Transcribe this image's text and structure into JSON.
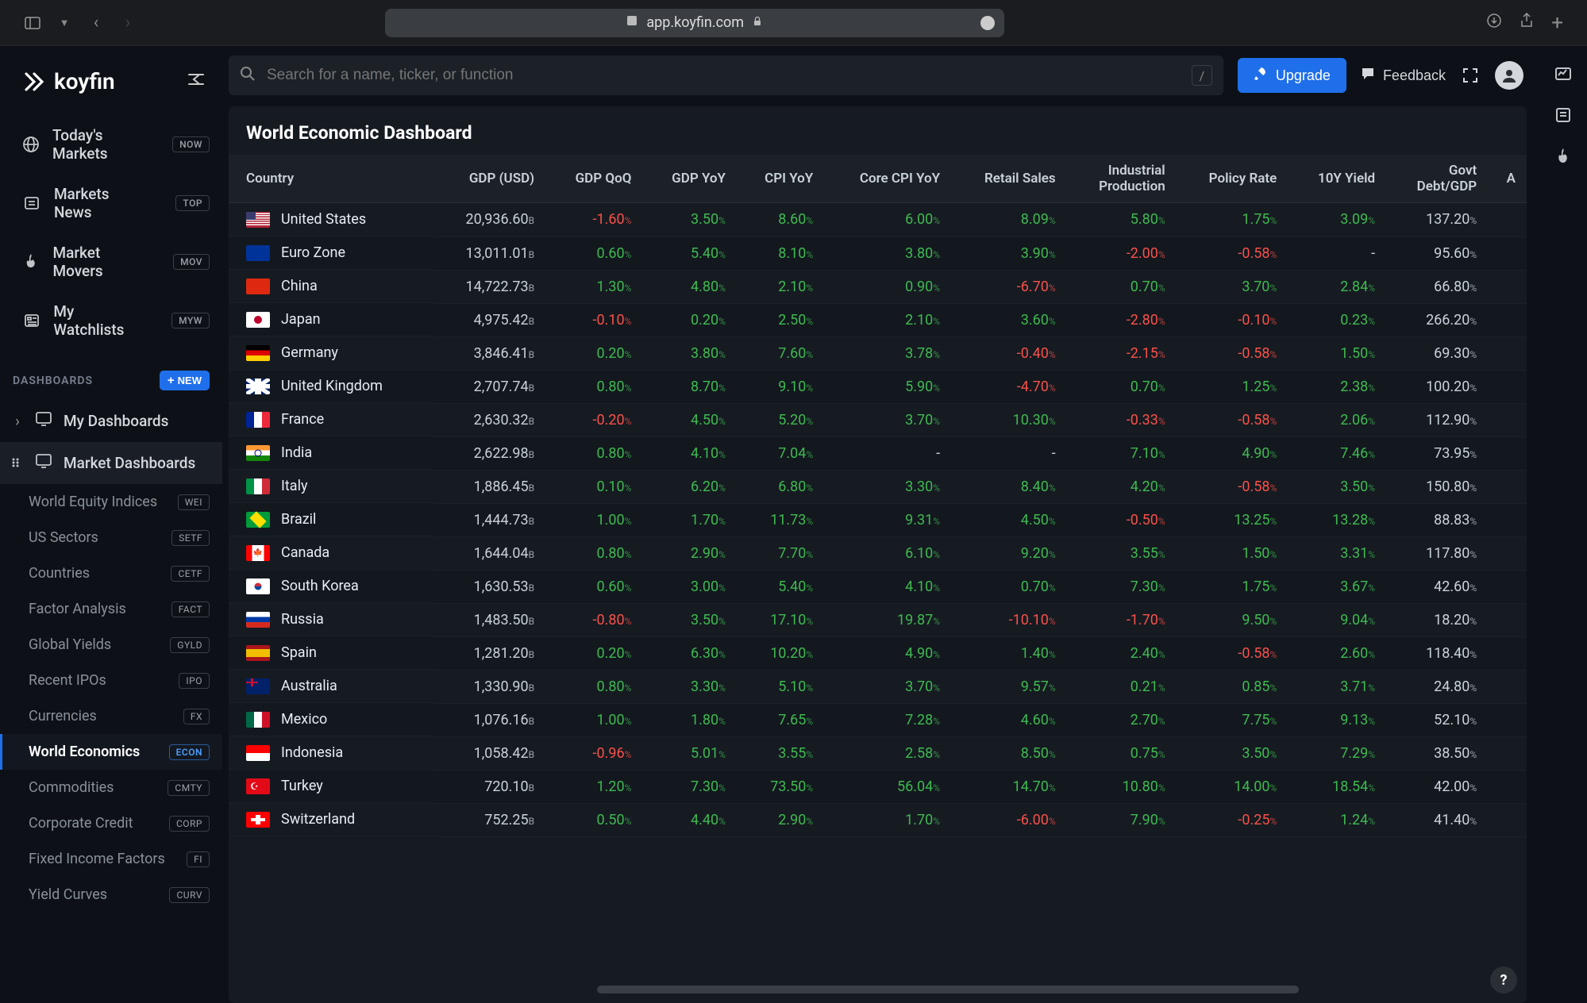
{
  "browser": {
    "url": "app.koyfin.com"
  },
  "logo": "koyfin",
  "topnav": [
    {
      "icon": "globe",
      "label": "Today's Markets",
      "badge": "NOW"
    },
    {
      "icon": "news",
      "label": "Markets News",
      "badge": "TOP"
    },
    {
      "icon": "flame",
      "label": "Market Movers",
      "badge": "MOV"
    },
    {
      "icon": "watchlist",
      "label": "My Watchlists",
      "badge": "MYW"
    }
  ],
  "section_label": "DASHBOARDS",
  "btn_new": "NEW",
  "dash_groups": [
    {
      "label": "My Dashboards",
      "expanded": false
    },
    {
      "label": "Market Dashboards",
      "expanded": true
    }
  ],
  "dash_subs": [
    {
      "label": "World Equity Indices",
      "badge": "WEI"
    },
    {
      "label": "US Sectors",
      "badge": "SETF"
    },
    {
      "label": "Countries",
      "badge": "CETF"
    },
    {
      "label": "Factor Analysis",
      "badge": "FACT"
    },
    {
      "label": "Global Yields",
      "badge": "GYLD"
    },
    {
      "label": "Recent IPOs",
      "badge": "IPO"
    },
    {
      "label": "Currencies",
      "badge": "FX"
    },
    {
      "label": "World Economics",
      "badge": "ECON",
      "active": true
    },
    {
      "label": "Commodities",
      "badge": "CMTY"
    },
    {
      "label": "Corporate Credit",
      "badge": "CORP"
    },
    {
      "label": "Fixed Income Factors",
      "badge": "FI"
    },
    {
      "label": "Yield Curves",
      "badge": "CURV"
    }
  ],
  "search_placeholder": "Search for a name, ticker, or function",
  "btn_upgrade": "Upgrade",
  "btn_feedback": "Feedback",
  "panel_title": "World Economic Dashboard",
  "table": {
    "columns": [
      "Country",
      "GDP (USD)",
      "GDP QoQ",
      "GDP YoY",
      "CPI YoY",
      "Core CPI YoY",
      "Retail Sales",
      "Industrial Production",
      "Policy Rate",
      "10Y Yield",
      "Govt Debt/GDP",
      "A"
    ],
    "rows": [
      {
        "flag": "us",
        "country": "United States",
        "gdp": "20,936.60",
        "qoq": "-1.60",
        "yoy": "3.50",
        "cpi": "8.60",
        "core": "6.00",
        "retail": "8.09",
        "ind": "5.80",
        "policy": "1.75",
        "y10": "3.09",
        "debt": "137.20"
      },
      {
        "flag": "eu",
        "country": "Euro Zone",
        "gdp": "13,011.01",
        "qoq": "0.60",
        "yoy": "5.40",
        "cpi": "8.10",
        "core": "3.80",
        "retail": "3.90",
        "ind": "-2.00",
        "policy": "-0.58",
        "y10": "-",
        "debt": "95.60"
      },
      {
        "flag": "cn",
        "country": "China",
        "gdp": "14,722.73",
        "qoq": "1.30",
        "yoy": "4.80",
        "cpi": "2.10",
        "core": "0.90",
        "retail": "-6.70",
        "ind": "0.70",
        "policy": "3.70",
        "y10": "2.84",
        "debt": "66.80"
      },
      {
        "flag": "jp",
        "country": "Japan",
        "gdp": "4,975.42",
        "qoq": "-0.10",
        "yoy": "0.20",
        "cpi": "2.50",
        "core": "2.10",
        "retail": "3.60",
        "ind": "-2.80",
        "policy": "-0.10",
        "y10": "0.23",
        "debt": "266.20"
      },
      {
        "flag": "de",
        "country": "Germany",
        "gdp": "3,846.41",
        "qoq": "0.20",
        "yoy": "3.80",
        "cpi": "7.60",
        "core": "3.78",
        "retail": "-0.40",
        "ind": "-2.15",
        "policy": "-0.58",
        "y10": "1.50",
        "debt": "69.30"
      },
      {
        "flag": "gb",
        "country": "United Kingdom",
        "gdp": "2,707.74",
        "qoq": "0.80",
        "yoy": "8.70",
        "cpi": "9.10",
        "core": "5.90",
        "retail": "-4.70",
        "ind": "0.70",
        "policy": "1.25",
        "y10": "2.38",
        "debt": "100.20"
      },
      {
        "flag": "fr",
        "country": "France",
        "gdp": "2,630.32",
        "qoq": "-0.20",
        "yoy": "4.50",
        "cpi": "5.20",
        "core": "3.70",
        "retail": "10.30",
        "ind": "-0.33",
        "policy": "-0.58",
        "y10": "2.06",
        "debt": "112.90"
      },
      {
        "flag": "in",
        "country": "India",
        "gdp": "2,622.98",
        "qoq": "0.80",
        "yoy": "4.10",
        "cpi": "7.04",
        "core": "-",
        "retail": "-",
        "ind": "7.10",
        "policy": "4.90",
        "y10": "7.46",
        "debt": "73.95"
      },
      {
        "flag": "it",
        "country": "Italy",
        "gdp": "1,886.45",
        "qoq": "0.10",
        "yoy": "6.20",
        "cpi": "6.80",
        "core": "3.30",
        "retail": "8.40",
        "ind": "4.20",
        "policy": "-0.58",
        "y10": "3.50",
        "debt": "150.80"
      },
      {
        "flag": "br",
        "country": "Brazil",
        "gdp": "1,444.73",
        "qoq": "1.00",
        "yoy": "1.70",
        "cpi": "11.73",
        "core": "9.31",
        "retail": "4.50",
        "ind": "-0.50",
        "policy": "13.25",
        "y10": "13.28",
        "debt": "88.83"
      },
      {
        "flag": "ca",
        "country": "Canada",
        "gdp": "1,644.04",
        "qoq": "0.80",
        "yoy": "2.90",
        "cpi": "7.70",
        "core": "6.10",
        "retail": "9.20",
        "ind": "3.55",
        "policy": "1.50",
        "y10": "3.31",
        "debt": "117.80"
      },
      {
        "flag": "kr",
        "country": "South Korea",
        "gdp": "1,630.53",
        "qoq": "0.60",
        "yoy": "3.00",
        "cpi": "5.40",
        "core": "4.10",
        "retail": "0.70",
        "ind": "7.30",
        "policy": "1.75",
        "y10": "3.67",
        "debt": "42.60"
      },
      {
        "flag": "ru",
        "country": "Russia",
        "gdp": "1,483.50",
        "qoq": "-0.80",
        "yoy": "3.50",
        "cpi": "17.10",
        "core": "19.87",
        "retail": "-10.10",
        "ind": "-1.70",
        "policy": "9.50",
        "y10": "9.04",
        "debt": "18.20"
      },
      {
        "flag": "es",
        "country": "Spain",
        "gdp": "1,281.20",
        "qoq": "0.20",
        "yoy": "6.30",
        "cpi": "10.20",
        "core": "4.90",
        "retail": "1.40",
        "ind": "2.40",
        "policy": "-0.58",
        "y10": "2.60",
        "debt": "118.40"
      },
      {
        "flag": "au",
        "country": "Australia",
        "gdp": "1,330.90",
        "qoq": "0.80",
        "yoy": "3.30",
        "cpi": "5.10",
        "core": "3.70",
        "retail": "9.57",
        "ind": "0.21",
        "policy": "0.85",
        "y10": "3.71",
        "debt": "24.80"
      },
      {
        "flag": "mx",
        "country": "Mexico",
        "gdp": "1,076.16",
        "qoq": "1.00",
        "yoy": "1.80",
        "cpi": "7.65",
        "core": "7.28",
        "retail": "4.60",
        "ind": "2.70",
        "policy": "7.75",
        "y10": "9.13",
        "debt": "52.10"
      },
      {
        "flag": "id",
        "country": "Indonesia",
        "gdp": "1,058.42",
        "qoq": "-0.96",
        "yoy": "5.01",
        "cpi": "3.55",
        "core": "2.58",
        "retail": "8.50",
        "ind": "0.75",
        "policy": "3.50",
        "y10": "7.29",
        "debt": "38.50"
      },
      {
        "flag": "tr",
        "country": "Turkey",
        "gdp": "720.10",
        "qoq": "1.20",
        "yoy": "7.30",
        "cpi": "73.50",
        "core": "56.04",
        "retail": "14.70",
        "ind": "10.80",
        "policy": "14.00",
        "y10": "18.54",
        "debt": "42.00"
      },
      {
        "flag": "ch",
        "country": "Switzerland",
        "gdp": "752.25",
        "qoq": "0.50",
        "yoy": "4.40",
        "cpi": "2.90",
        "core": "1.70",
        "retail": "-6.00",
        "ind": "7.90",
        "policy": "-0.25",
        "y10": "1.24",
        "debt": "41.40"
      }
    ]
  },
  "colors": {
    "pos": "#3fb950",
    "neg": "#f85149",
    "bg": "#0d1117",
    "panel": "#161b22",
    "accent": "#1f6feb"
  }
}
